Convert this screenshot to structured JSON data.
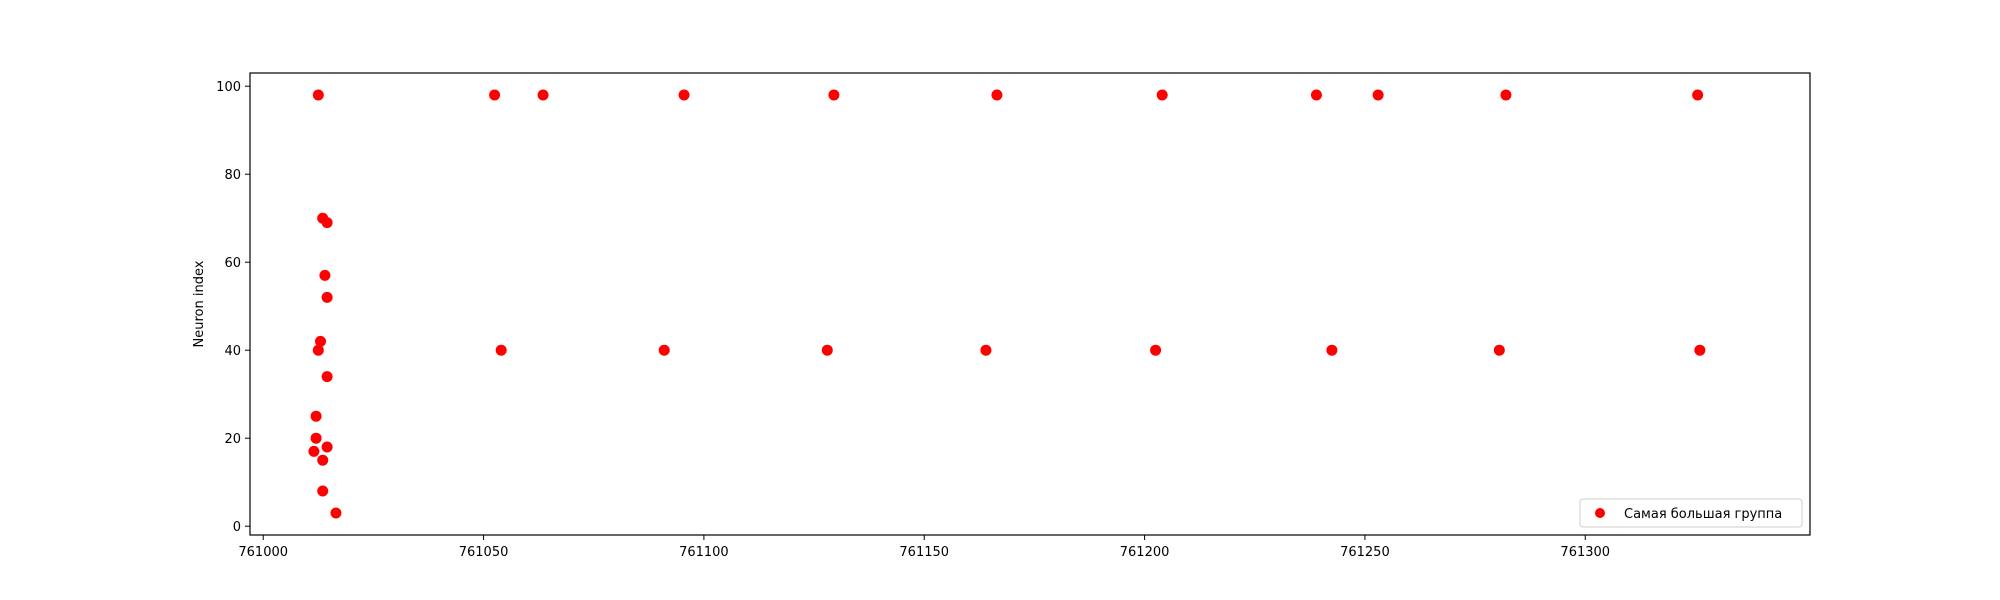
{
  "chart_data": {
    "type": "scatter",
    "title": "",
    "xlabel": "",
    "ylabel": "Neuron index",
    "xlim": [
      760997,
      761351
    ],
    "ylim": [
      -2,
      103
    ],
    "xticks": [
      761000,
      761050,
      761100,
      761150,
      761200,
      761250,
      761300
    ],
    "yticks": [
      0,
      20,
      40,
      60,
      80,
      100
    ],
    "grid": false,
    "legend_position": "lower-right",
    "series": [
      {
        "name": "Самая большая группа",
        "color": "#ff0000",
        "points": [
          {
            "x": 761012.5,
            "y": 98
          },
          {
            "x": 761052.5,
            "y": 98
          },
          {
            "x": 761063.5,
            "y": 98
          },
          {
            "x": 761095.5,
            "y": 98
          },
          {
            "x": 761129.5,
            "y": 98
          },
          {
            "x": 761166.5,
            "y": 98
          },
          {
            "x": 761204.0,
            "y": 98
          },
          {
            "x": 761239.0,
            "y": 98
          },
          {
            "x": 761253.0,
            "y": 98
          },
          {
            "x": 761282.0,
            "y": 98
          },
          {
            "x": 761325.5,
            "y": 98
          },
          {
            "x": 761013.5,
            "y": 70
          },
          {
            "x": 761014.5,
            "y": 69
          },
          {
            "x": 761014.0,
            "y": 57
          },
          {
            "x": 761014.5,
            "y": 52
          },
          {
            "x": 761013.0,
            "y": 42
          },
          {
            "x": 761012.5,
            "y": 40
          },
          {
            "x": 761054.0,
            "y": 40
          },
          {
            "x": 761091.0,
            "y": 40
          },
          {
            "x": 761128.0,
            "y": 40
          },
          {
            "x": 761164.0,
            "y": 40
          },
          {
            "x": 761202.5,
            "y": 40
          },
          {
            "x": 761242.5,
            "y": 40
          },
          {
            "x": 761280.5,
            "y": 40
          },
          {
            "x": 761326.0,
            "y": 40
          },
          {
            "x": 761014.5,
            "y": 34
          },
          {
            "x": 761012.0,
            "y": 25
          },
          {
            "x": 761012.0,
            "y": 20
          },
          {
            "x": 761014.5,
            "y": 18
          },
          {
            "x": 761011.5,
            "y": 17
          },
          {
            "x": 761013.5,
            "y": 15
          },
          {
            "x": 761013.5,
            "y": 8
          },
          {
            "x": 761016.5,
            "y": 3
          }
        ]
      }
    ]
  }
}
